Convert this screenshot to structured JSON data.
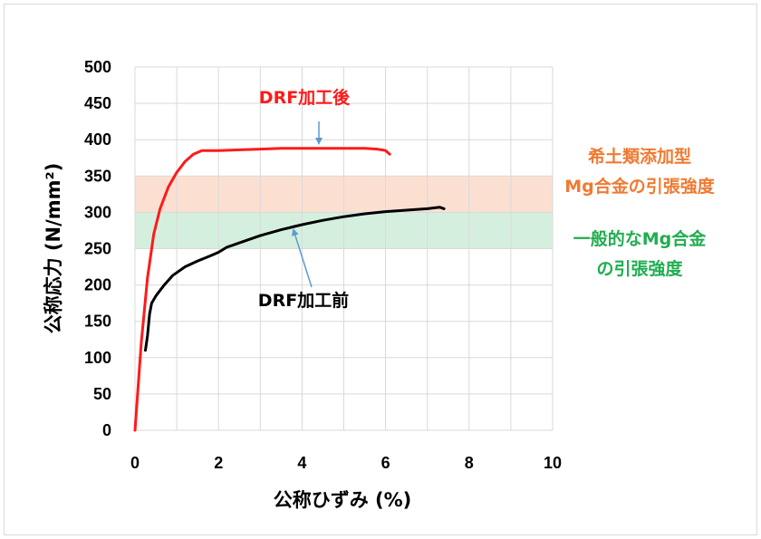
{
  "chart_data": {
    "type": "line",
    "title": "",
    "xlabel": "公称ひずみ (%)",
    "ylabel": "公称応力 (N/mm²)",
    "xlim": [
      0,
      10
    ],
    "ylim": [
      0,
      500
    ],
    "x_ticks": [
      0,
      2,
      4,
      6,
      8,
      10
    ],
    "y_ticks": [
      0,
      50,
      100,
      150,
      200,
      250,
      300,
      350,
      400,
      450,
      500
    ],
    "grid": true,
    "bands": [
      {
        "label_lines": [
          "希土類添加型",
          "Mg合金の引張強度"
        ],
        "range": [
          300,
          350
        ],
        "color": "#fbe0d2",
        "label_color": "#f07a32"
      },
      {
        "label_lines": [
          "一般的なMg合金",
          "の引張強度"
        ],
        "range": [
          250,
          300
        ],
        "color": "#d5efdf",
        "label_color": "#1fae50"
      }
    ],
    "series": [
      {
        "name": "DRF加工後",
        "color": "#ff1a1a",
        "x": [
          0,
          0.15,
          0.3,
          0.45,
          0.6,
          0.8,
          1.0,
          1.2,
          1.4,
          1.6,
          2.0,
          2.5,
          3.0,
          3.5,
          4.0,
          4.5,
          5.0,
          5.5,
          5.8,
          6.0,
          6.1
        ],
        "y": [
          0,
          120,
          210,
          270,
          305,
          335,
          355,
          370,
          380,
          385,
          385,
          386,
          387,
          388,
          388,
          388,
          388,
          388,
          387,
          385,
          380
        ]
      },
      {
        "name": "DRF加工前",
        "color": "#000000",
        "x": [
          0.25,
          0.3,
          0.35,
          0.4,
          0.5,
          0.7,
          0.9,
          1.2,
          1.5,
          1.8,
          2.0,
          2.2,
          2.5,
          3.0,
          3.5,
          4.0,
          4.5,
          5.0,
          5.5,
          6.0,
          6.5,
          7.0,
          7.3,
          7.4
        ],
        "y": [
          110,
          130,
          160,
          175,
          185,
          200,
          213,
          225,
          233,
          240,
          245,
          252,
          258,
          268,
          276,
          283,
          289,
          294,
          298,
          301,
          303,
          305,
          307,
          305
        ]
      }
    ],
    "annotations": [
      {
        "text": "DRF加工後",
        "color": "#ff1a1a",
        "points_to_series": 0
      },
      {
        "text": "DRF加工前",
        "color": "#000000",
        "points_to_series": 1
      }
    ]
  }
}
